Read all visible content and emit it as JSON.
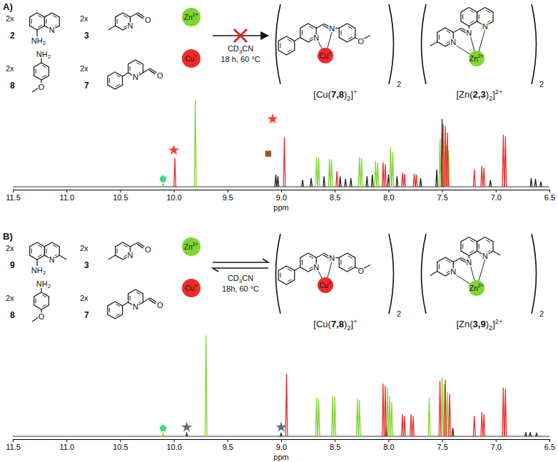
{
  "chart_data": [
    {
      "type": "spectrum",
      "xlim": [
        11.5,
        6.5
      ],
      "xticks": [
        11.5,
        {
          "value": 11,
          "label": "11.0"
        },
        10.5,
        {
          "value": 10,
          "label": "10.0"
        },
        9.5,
        {
          "value": 9,
          "label": "9.0"
        },
        8.5,
        {
          "value": 8,
          "label": "8.0"
        },
        7.5,
        {
          "value": 7,
          "label": "7.0"
        },
        6.5
      ],
      "x_label": "ppm",
      "ylim": [
        0,
        100
      ],
      "tick_labels": "x",
      "series": [
        {
          "color": "#222222",
          "x": [
            9.05,
            9.03,
            8.8,
            8.72,
            8.6,
            8.45,
            8.4,
            8.35,
            8.2,
            8.15,
            8.0,
            7.92,
            7.7,
            7.55,
            7.5,
            7.05,
            6.67,
            6.63,
            6.58
          ],
          "values": [
            14,
            12,
            8,
            10,
            12,
            12,
            9,
            10,
            12,
            14,
            14,
            12,
            10,
            20,
            78,
            8,
            10,
            9,
            6
          ]
        },
        {
          "color": "#7fd630",
          "x": [
            10.1,
            9.8,
            8.67,
            8.65,
            8.55,
            8.53,
            8.27,
            8.25,
            8.12,
            8.1,
            7.98,
            7.96,
            7.52,
            7.46,
            7.44
          ],
          "values": [
            4,
            100,
            34,
            33,
            32,
            31,
            34,
            33,
            30,
            28,
            46,
            40,
            55,
            48,
            42
          ]
        },
        {
          "color": "#ee2b2b",
          "x": [
            9.99,
            8.97,
            8.48,
            8.05,
            8.03,
            7.87,
            7.85,
            7.76,
            7.74,
            7.49,
            7.47,
            7.45,
            7.2,
            7.13,
            7.11,
            6.93,
            6.91
          ],
          "values": [
            33,
            57,
            18,
            28,
            26,
            16,
            15,
            15,
            14,
            72,
            70,
            62,
            20,
            24,
            22,
            60,
            58
          ]
        },
        {
          "type": "scatter",
          "marker": "pentagon",
          "color": "#3fd98a",
          "x": [
            10.1
          ],
          "values": [
            9
          ]
        },
        {
          "type": "scatter",
          "marker": "star",
          "color": "#ff3b30",
          "x": [
            10.0,
            9.08
          ],
          "values": [
            42,
            78
          ]
        },
        {
          "type": "scatter",
          "marker": "square",
          "color": "#a0522d",
          "x": [
            9.12
          ],
          "values": [
            38
          ]
        }
      ]
    },
    {
      "type": "spectrum",
      "xlim": [
        11.5,
        6.5
      ],
      "xticks": [
        11.5,
        {
          "value": 11,
          "label": "11.0"
        },
        10.5,
        {
          "value": 10,
          "label": "10.0"
        },
        9.5,
        {
          "value": 9,
          "label": "9.0"
        },
        8.5,
        {
          "value": 8,
          "label": "8.0"
        },
        7.5,
        {
          "value": 7,
          "label": "7.0"
        },
        6.5
      ],
      "x_label": "ppm",
      "ylim": [
        0,
        100
      ],
      "tick_labels": "x",
      "series": [
        {
          "color": "#222222",
          "x": [
            9.88,
            9.0,
            8.02,
            7.4,
            6.72,
            6.68,
            6.62
          ],
          "values": [
            3,
            3,
            10,
            8,
            4,
            4,
            3
          ]
        },
        {
          "color": "#7fd630",
          "x": [
            10.1,
            9.7,
            8.67,
            8.65,
            8.52,
            8.5,
            8.29,
            8.27,
            8.01,
            7.99,
            7.97,
            7.62,
            7.5,
            7.48,
            7.45
          ],
          "values": [
            3,
            100,
            38,
            37,
            40,
            39,
            37,
            36,
            48,
            40,
            34,
            38,
            58,
            52,
            44
          ]
        },
        {
          "color": "#ee2b2b",
          "x": [
            8.95,
            8.05,
            8.03,
            7.87,
            7.85,
            7.79,
            7.77,
            7.52,
            7.47,
            7.43,
            7.2,
            7.13,
            7.11,
            6.93,
            6.91
          ],
          "values": [
            62,
            52,
            50,
            22,
            20,
            22,
            20,
            55,
            56,
            42,
            20,
            24,
            22,
            48,
            47
          ]
        },
        {
          "type": "scatter",
          "marker": "pentagon",
          "color": "#3fd98a",
          "x": [
            10.1
          ],
          "values": [
            8
          ]
        },
        {
          "type": "scatter",
          "marker": "star",
          "color": "#5f6f7f",
          "x": [
            9.88,
            9.0
          ],
          "values": [
            9,
            9
          ]
        }
      ]
    }
  ],
  "schemes": [
    {
      "label": "A)",
      "reactants": [
        {
          "count": "2x",
          "label": "2",
          "atoms": [
            "N",
            [
              {
                "text": "NH"
              },
              {
                "text": "2",
                "style": "sub"
              }
            ]
          ]
        },
        {
          "count": "2x",
          "label": "3",
          "atoms": [
            "N",
            "O"
          ]
        },
        {
          "count": "2x",
          "label": "8",
          "atoms": [
            [
              {
                "text": "NH"
              },
              {
                "text": "2",
                "style": "sub"
              }
            ],
            "O"
          ]
        },
        {
          "count": "2x",
          "label": "7",
          "atoms": [
            "N",
            "O"
          ]
        }
      ],
      "ions": [
        {
          "symbol": "Zn",
          "charge": "2+",
          "color": "#7fd630"
        },
        {
          "symbol": "Cu",
          "charge": "+",
          "color": "#ee2b2b"
        }
      ],
      "solvent": [
        {
          "text": "CD"
        },
        {
          "text": "3",
          "style": "sub"
        },
        {
          "text": "CN"
        }
      ],
      "conditions": "18 h, 60 °C",
      "equilibrium": false,
      "products": [
        {
          "atoms": [
            "N",
            "N",
            "O"
          ],
          "metal": {
            "symbol": "Cu",
            "charge": "+",
            "color": "#ee2b2b"
          },
          "count": "2",
          "formula": [
            {
              "text": "[Cu("
            },
            {
              "text": "7,8",
              "style": "bold"
            },
            {
              "text": ")"
            },
            {
              "text": "2",
              "style": "sub"
            },
            {
              "text": "]"
            },
            {
              "text": "+",
              "style": "sup"
            }
          ]
        },
        {
          "atoms": [
            "N",
            "N",
            "N"
          ],
          "metal": {
            "symbol": "Zn",
            "charge": "2+",
            "color": "#7fd630"
          },
          "count": "2",
          "formula": [
            {
              "text": "[Zn("
            },
            {
              "text": "2,3",
              "style": "bold"
            },
            {
              "text": ")"
            },
            {
              "text": "2",
              "style": "sub"
            },
            {
              "text": "]"
            },
            {
              "text": "2+",
              "style": "sup"
            }
          ]
        }
      ]
    },
    {
      "label": "B)",
      "reactants": [
        {
          "count": "2x",
          "label": "9",
          "atoms": [
            "N",
            [
              {
                "text": "NH"
              },
              {
                "text": "2",
                "style": "sub"
              }
            ]
          ]
        },
        {
          "count": "2x",
          "label": "3",
          "atoms": [
            "N",
            "O"
          ]
        },
        {
          "count": "2x",
          "label": "8",
          "atoms": [
            [
              {
                "text": "NH"
              },
              {
                "text": "2",
                "style": "sub"
              }
            ],
            "O"
          ]
        },
        {
          "count": "2x",
          "label": "7",
          "atoms": [
            "N",
            "O"
          ]
        }
      ],
      "ions": [
        {
          "symbol": "Zn",
          "charge": "2+",
          "color": "#7fd630"
        },
        {
          "symbol": "Cu",
          "charge": "+",
          "color": "#ee2b2b"
        }
      ],
      "solvent": [
        {
          "text": "CD"
        },
        {
          "text": "3",
          "style": "sub"
        },
        {
          "text": "CN"
        }
      ],
      "conditions": "18h, 60 °C",
      "equilibrium": true,
      "products": [
        {
          "atoms": [
            "N",
            "N",
            "O"
          ],
          "metal": {
            "symbol": "Cu",
            "charge": "+",
            "color": "#ee2b2b"
          },
          "count": "2",
          "formula": [
            {
              "text": "[Cu("
            },
            {
              "text": "7,8",
              "style": "bold"
            },
            {
              "text": ")"
            },
            {
              "text": "2",
              "style": "sub"
            },
            {
              "text": "]"
            },
            {
              "text": "+",
              "style": "sup"
            }
          ]
        },
        {
          "atoms": [
            "N",
            "N",
            "N"
          ],
          "metal": {
            "symbol": "Zn",
            "charge": "2+",
            "color": "#7fd630"
          },
          "count": "2",
          "formula": [
            {
              "text": "[Zn("
            },
            {
              "text": "3,9",
              "style": "bold"
            },
            {
              "text": ")"
            },
            {
              "text": "2",
              "style": "sub"
            },
            {
              "text": "]"
            },
            {
              "text": "2+",
              "style": "sup"
            }
          ]
        }
      ]
    }
  ]
}
